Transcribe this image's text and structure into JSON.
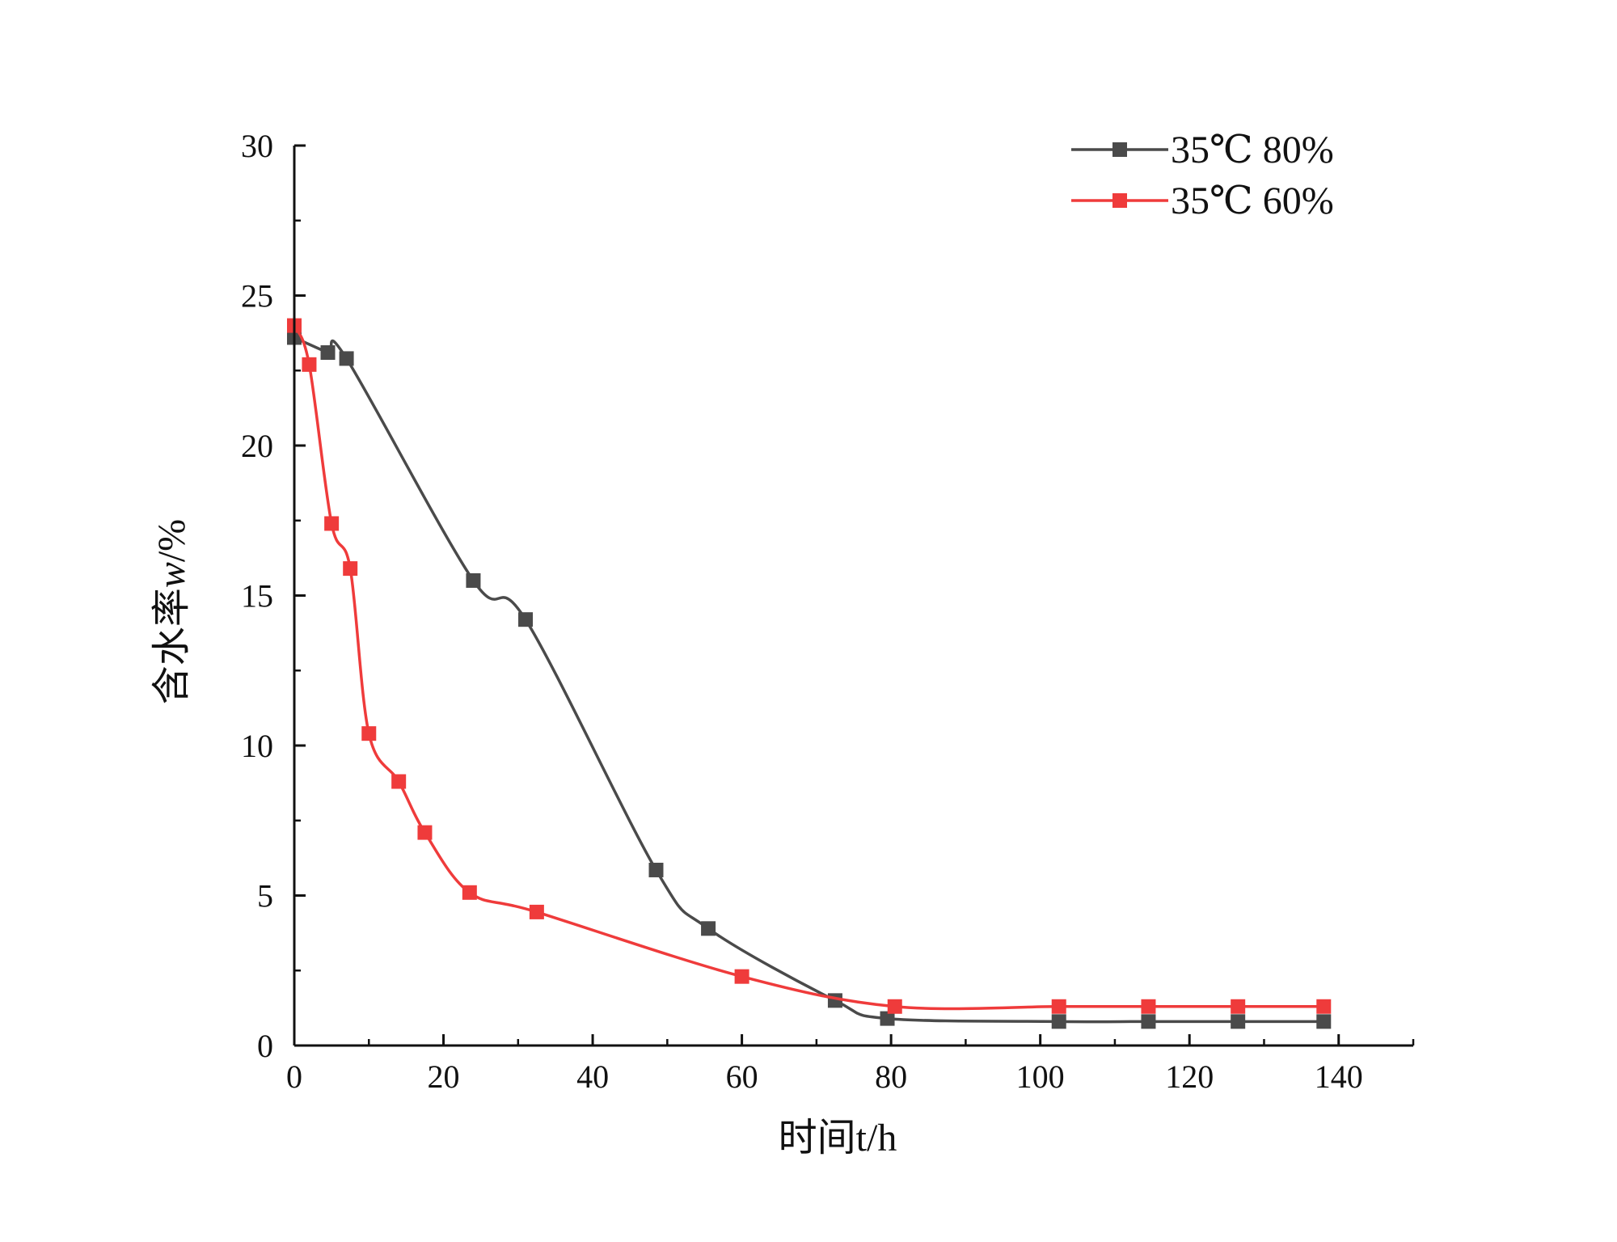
{
  "chart_data": {
    "type": "line",
    "xlabel": "时间t/h",
    "ylabel_prefix": "含水率",
    "ylabel_var": "w",
    "ylabel_suffix": "/%",
    "xlim": [
      0,
      150
    ],
    "ylim": [
      0,
      30
    ],
    "x_ticks": [
      0,
      20,
      40,
      60,
      80,
      100,
      120,
      140
    ],
    "y_ticks": [
      0,
      5,
      10,
      15,
      20,
      25,
      30
    ],
    "grid": false,
    "legend_position": "top-right",
    "series": [
      {
        "name": "35℃ 80%",
        "color": "#4a4a4a",
        "marker": "square",
        "points": [
          {
            "x": 0,
            "y": 23.6
          },
          {
            "x": 4.5,
            "y": 23.1
          },
          {
            "x": 7,
            "y": 22.9
          },
          {
            "x": 24,
            "y": 15.5
          },
          {
            "x": 31,
            "y": 14.2
          },
          {
            "x": 48.5,
            "y": 5.85
          },
          {
            "x": 55.5,
            "y": 3.9
          },
          {
            "x": 72.5,
            "y": 1.5
          },
          {
            "x": 79.5,
            "y": 0.9
          },
          {
            "x": 102.5,
            "y": 0.8
          },
          {
            "x": 114.5,
            "y": 0.8
          },
          {
            "x": 126.5,
            "y": 0.8
          },
          {
            "x": 138,
            "y": 0.8
          }
        ]
      },
      {
        "name": "35℃ 60%",
        "color": "#ef3b3b",
        "marker": "square",
        "points": [
          {
            "x": 0,
            "y": 24.0
          },
          {
            "x": 2,
            "y": 22.7
          },
          {
            "x": 5,
            "y": 17.4
          },
          {
            "x": 7.5,
            "y": 15.9
          },
          {
            "x": 10,
            "y": 10.4
          },
          {
            "x": 14,
            "y": 8.8
          },
          {
            "x": 17.5,
            "y": 7.1
          },
          {
            "x": 23.5,
            "y": 5.1
          },
          {
            "x": 32.5,
            "y": 4.45
          },
          {
            "x": 60,
            "y": 2.3
          },
          {
            "x": 80.5,
            "y": 1.3
          },
          {
            "x": 102.5,
            "y": 1.3
          },
          {
            "x": 114.5,
            "y": 1.3
          },
          {
            "x": 126.5,
            "y": 1.3
          },
          {
            "x": 138,
            "y": 1.3
          }
        ]
      }
    ]
  }
}
